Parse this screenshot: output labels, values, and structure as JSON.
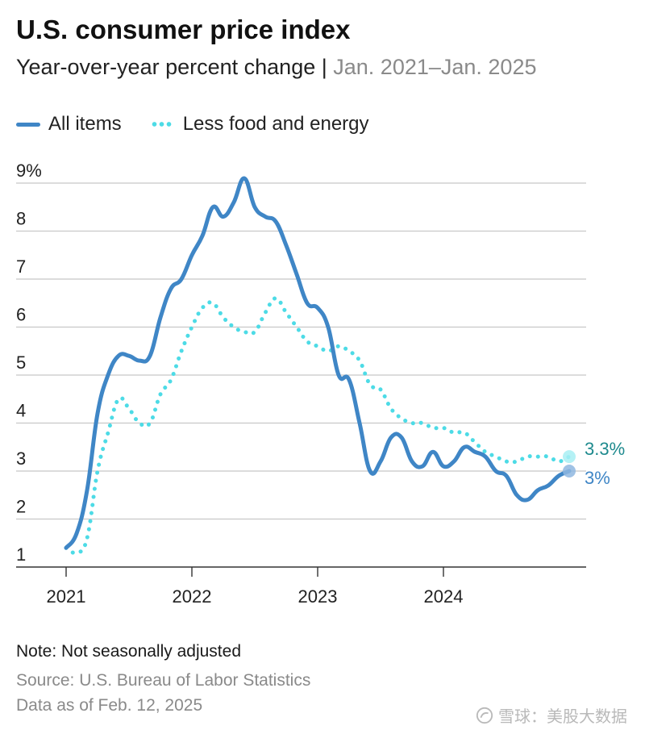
{
  "header": {
    "title": "U.S. consumer price index",
    "subtitle_main": "Year-over-year percent change",
    "subtitle_sep": " | ",
    "subtitle_range": "Jan. 2021–Jan. 2025"
  },
  "legend": {
    "all_items": "All items",
    "core": "Less food and energy"
  },
  "colors": {
    "all_items": "#3f86c6",
    "core": "#4ddbe6",
    "core_label": "#1e8a8e",
    "all_label": "#3f86c6",
    "grid": "#c8c8c8",
    "axis": "#333333"
  },
  "chart_data": {
    "type": "line",
    "title": "U.S. consumer price index",
    "subtitle": "Year-over-year percent change | Jan. 2021–Jan. 2025",
    "xlabel": "",
    "ylabel": "",
    "ylim": [
      1,
      9
    ],
    "y_ticks": [
      1,
      2,
      3,
      4,
      5,
      6,
      7,
      8,
      9
    ],
    "y_tick_labels": [
      "1",
      "2",
      "3",
      "4",
      "5",
      "6",
      "7",
      "8",
      "9%"
    ],
    "x_ticks": [
      0,
      12,
      24,
      36
    ],
    "x_tick_labels": [
      "2021",
      "2022",
      "2023",
      "2024"
    ],
    "x_range": [
      0,
      48
    ],
    "x_unit": "months since Jan. 2021",
    "grid": true,
    "legend_position": "top-left",
    "series": [
      {
        "name": "All items",
        "style": "solid",
        "values": [
          1.4,
          1.7,
          2.6,
          4.2,
          5.0,
          5.4,
          5.4,
          5.3,
          5.4,
          6.2,
          6.8,
          7.0,
          7.5,
          7.9,
          8.5,
          8.3,
          8.6,
          9.1,
          8.5,
          8.3,
          8.2,
          7.7,
          7.1,
          6.5,
          6.4,
          6.0,
          5.0,
          4.9,
          4.0,
          3.0,
          3.2,
          3.7,
          3.7,
          3.2,
          3.1,
          3.4,
          3.1,
          3.2,
          3.5,
          3.4,
          3.3,
          3.0,
          2.9,
          2.5,
          2.4,
          2.6,
          2.7,
          2.9,
          3.0
        ],
        "end_label": "3%"
      },
      {
        "name": "Less food and energy",
        "style": "dotted",
        "values": [
          1.4,
          1.3,
          1.6,
          3.0,
          3.8,
          4.5,
          4.3,
          4.0,
          4.0,
          4.6,
          4.9,
          5.5,
          6.0,
          6.4,
          6.5,
          6.2,
          6.0,
          5.9,
          5.9,
          6.3,
          6.6,
          6.3,
          6.0,
          5.7,
          5.6,
          5.5,
          5.6,
          5.5,
          5.3,
          4.8,
          4.7,
          4.3,
          4.1,
          4.0,
          4.0,
          3.9,
          3.9,
          3.8,
          3.8,
          3.6,
          3.4,
          3.3,
          3.2,
          3.2,
          3.3,
          3.3,
          3.3,
          3.2,
          3.3
        ],
        "end_label": "3.3%"
      }
    ]
  },
  "footer": {
    "note": "Note: Not seasonally adjusted",
    "source": "Source: U.S. Bureau of Labor Statistics",
    "as_of": "Data as of Feb. 12, 2025"
  },
  "watermark": {
    "text": "雪球：美股大数据",
    "icon": "snowball-logo-icon"
  }
}
